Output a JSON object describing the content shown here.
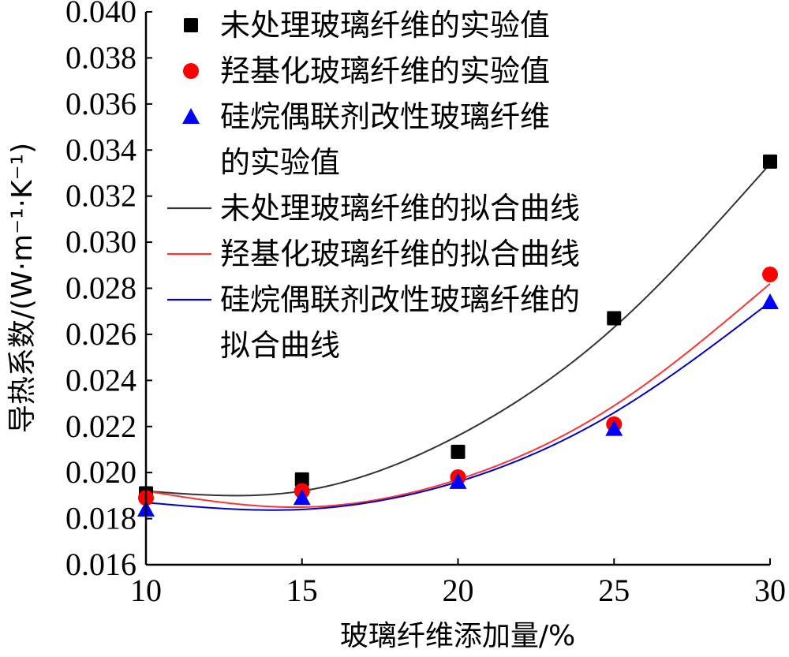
{
  "chart_data": {
    "type": "scatter",
    "xlabel": "玻璃纤维添加量/%",
    "ylabel": "导热系数/(W·m⁻¹·K⁻¹)",
    "xlim": [
      10,
      30
    ],
    "ylim": [
      0.016,
      0.04
    ],
    "x_ticks": [
      "10",
      "15",
      "20",
      "25",
      "30"
    ],
    "y_ticks": [
      "0.016",
      "0.018",
      "0.020",
      "0.022",
      "0.024",
      "0.026",
      "0.028",
      "0.030",
      "0.032",
      "0.034",
      "0.036",
      "0.038",
      "0.040"
    ],
    "x": [
      10,
      15,
      20,
      25,
      30
    ],
    "legend_position": "top-left",
    "series": [
      {
        "name": "未处理玻璃纤维的实验值",
        "kind": "points",
        "marker": "square",
        "color": "#000000",
        "values": [
          0.0191,
          0.0197,
          0.0209,
          0.0267,
          0.0335
        ]
      },
      {
        "name": "羟基化玻璃纤维的实验值",
        "kind": "points",
        "marker": "circle",
        "color": "#ff0000",
        "values": [
          0.0189,
          0.0192,
          0.0198,
          0.0221,
          0.0286
        ]
      },
      {
        "name": "硅烷偶联剂改性玻璃纤维的实验值",
        "legend_lines": [
          "硅烷偶联剂改性玻璃纤维",
          "的实验值"
        ],
        "kind": "points",
        "marker": "triangle",
        "color": "#0000ff",
        "values": [
          0.0184,
          0.0189,
          0.0196,
          0.0219,
          0.0274
        ]
      },
      {
        "name": "未处理玻璃纤维的拟合曲线",
        "kind": "fit",
        "color": "#333333",
        "values": [
          0.0192,
          0.0192,
          0.0216,
          0.0263,
          0.0334
        ]
      },
      {
        "name": "羟基化玻璃纤维的拟合曲线",
        "kind": "fit",
        "color": "#ff3333",
        "values": [
          0.0192,
          0.0185,
          0.0197,
          0.0229,
          0.0282
        ]
      },
      {
        "name": "硅烷偶联剂改性玻璃纤维的拟合曲线",
        "legend_lines": [
          "硅烷偶联剂改性玻璃纤维的",
          "拟合曲线"
        ],
        "kind": "fit",
        "color": "#0000cc",
        "values": [
          0.0187,
          0.0184,
          0.0196,
          0.0226,
          0.0274
        ]
      }
    ]
  }
}
